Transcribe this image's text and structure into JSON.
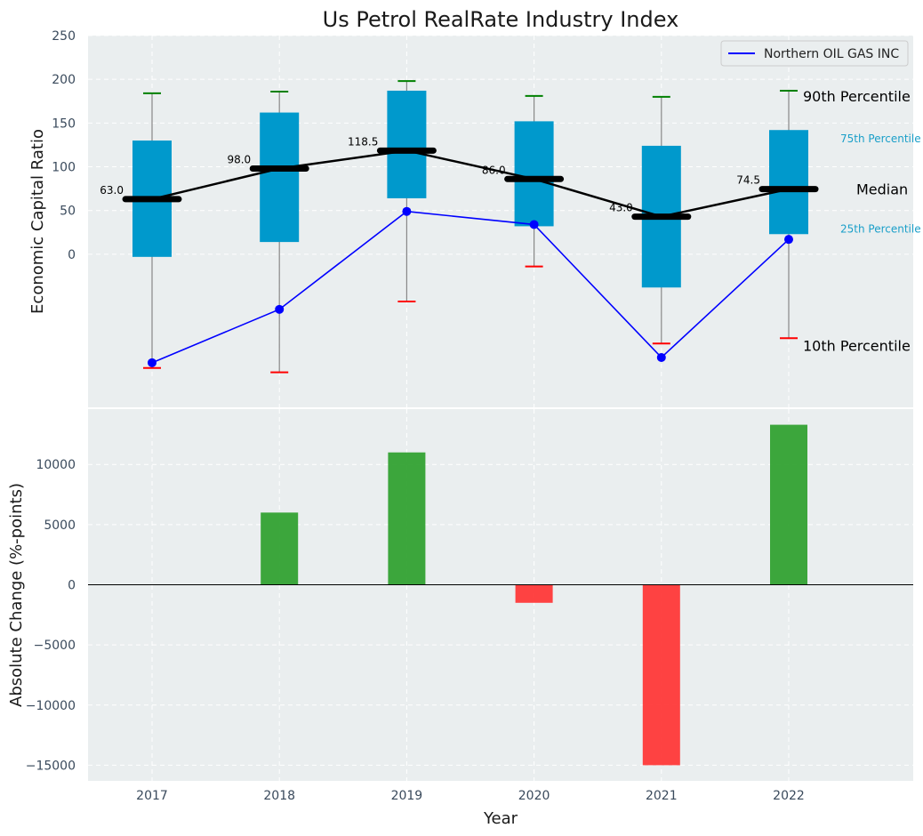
{
  "chart_data": {
    "title": "Us Petrol RealRate Industry Index",
    "years": [
      "2017",
      "2018",
      "2019",
      "2020",
      "2021",
      "2022"
    ],
    "top": {
      "type": "box",
      "ylabel": "Economic Capital Ratio",
      "ylim": [
        -175,
        250
      ],
      "yticks": [
        0,
        50,
        100,
        150,
        200,
        250
      ],
      "p10": [
        -130,
        -135,
        -54,
        -14,
        -102,
        -96
      ],
      "p25": [
        -3,
        14,
        64,
        32,
        -38,
        23
      ],
      "median": [
        63.0,
        98.0,
        118.5,
        86.0,
        43.0,
        74.5
      ],
      "p75": [
        130,
        162,
        187,
        152,
        124,
        142
      ],
      "p90": [
        184,
        186,
        198,
        181,
        180,
        187
      ],
      "median_labels": [
        "63.0",
        "98.0",
        "118.5",
        "86.0",
        "43.0",
        "74.5"
      ],
      "company": {
        "name": "Northern OIL GAS INC",
        "values": [
          -124,
          -63,
          49,
          34,
          -118,
          17
        ]
      },
      "annotations": {
        "p90": "90th Percentile",
        "p75": "75th Percentile",
        "median": "Median",
        "p25": "25th Percentile",
        "p10": "10th Percentile"
      },
      "legend_position": "top-right"
    },
    "bottom": {
      "type": "bar",
      "ylabel": "Absolute Change (%-points)",
      "xlabel": "Year",
      "ylim": [
        -16300,
        14600
      ],
      "yticks": [
        10000,
        5000,
        0,
        -5000,
        -10000,
        -15000
      ],
      "ytick_labels": [
        "10000",
        "5000",
        "0",
        "−5000",
        "−10000",
        "−15000"
      ],
      "values": [
        0,
        6000,
        11000,
        -1500,
        -15000,
        13300
      ]
    },
    "colors": {
      "box": "#0099cc",
      "median": "#000000",
      "company": "#0000ff",
      "p90_cap": "#008000",
      "p10_cap": "#ff0000",
      "whisker": "#888888",
      "bar_pos": "#2ca02c",
      "bar_neg": "#ff3333",
      "bg": "#eaeeef",
      "pct_blue": "#1a9fc9"
    }
  }
}
